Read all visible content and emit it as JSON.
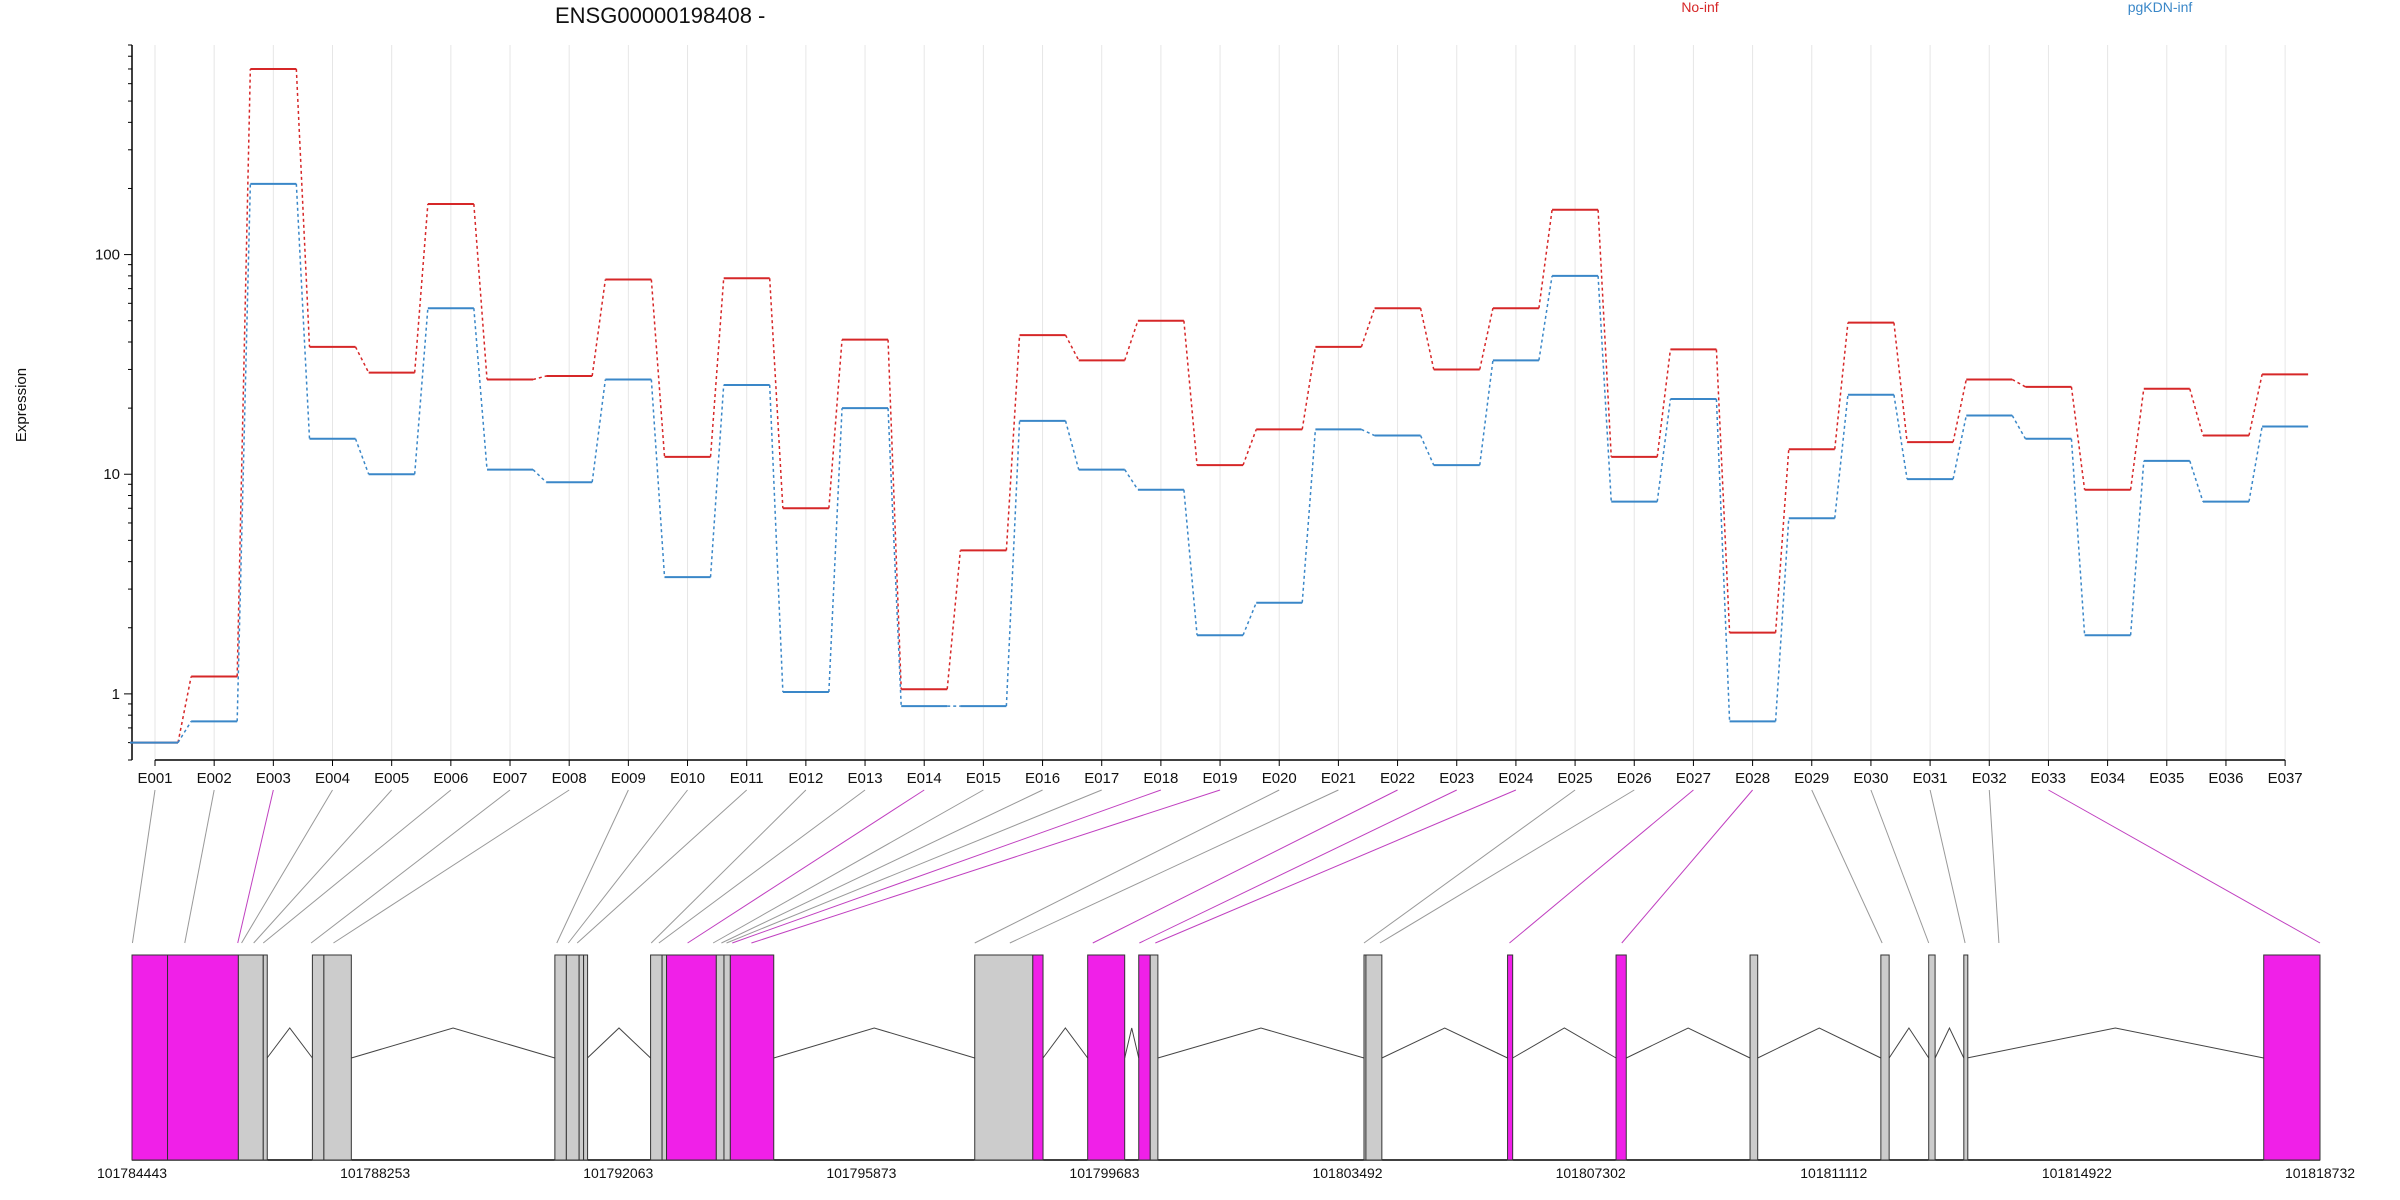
{
  "chart_data": {
    "type": "line",
    "title": "ENSG00000198408 -",
    "xlabel": "",
    "ylabel": "Expression",
    "y_scale": "log",
    "ylim": [
      0.5,
      900
    ],
    "y_ticks": [
      1,
      10,
      100
    ],
    "y_tick_labels": [
      "1",
      "10",
      "100"
    ],
    "grid": "vertical",
    "legend_placement": "top-right",
    "categories": [
      "E001",
      "E002",
      "E003",
      "E004",
      "E005",
      "E006",
      "E007",
      "E008",
      "E009",
      "E010",
      "E011",
      "E012",
      "E013",
      "E014",
      "E015",
      "E016",
      "E017",
      "E018",
      "E019",
      "E020",
      "E021",
      "E022",
      "E023",
      "E024",
      "E025",
      "E026",
      "E027",
      "E028",
      "E029",
      "E030",
      "E031",
      "E032",
      "E033",
      "E034",
      "E035",
      "E036",
      "E037"
    ],
    "series": [
      {
        "name": "No-inf",
        "color": "#d62728",
        "values": [
          0.6,
          1.2,
          700,
          38,
          29,
          170,
          27,
          28,
          77,
          12,
          78,
          7,
          41,
          1.05,
          4.5,
          43,
          33,
          50,
          11,
          16,
          38,
          57,
          30,
          57,
          160,
          12,
          37,
          1.9,
          13,
          49,
          14,
          27,
          25,
          8.5,
          24.5,
          15,
          28.5
        ]
      },
      {
        "name": "pgKDN-inf",
        "color": "#3a87c8",
        "values": [
          0.6,
          0.75,
          210,
          14.5,
          10,
          57,
          10.5,
          9.2,
          27,
          3.4,
          25.5,
          1.02,
          20,
          0.88,
          0.88,
          17.5,
          10.5,
          8.5,
          1.85,
          2.6,
          16,
          15,
          11,
          33,
          80,
          7.5,
          22,
          0.75,
          6.3,
          23,
          9.5,
          18.5,
          14.5,
          1.85,
          11.5,
          7.5,
          16.5
        ]
      }
    ],
    "gene_model": {
      "coordinate_ticks": [
        "101784443",
        "101788253",
        "101792063",
        "101795873",
        "101799683",
        "101803492",
        "101807302",
        "101811112",
        "101814922",
        "101818732"
      ],
      "exons": [
        {
          "id": "E001",
          "start": 101784443,
          "end": 101785000,
          "highlight": true
        },
        {
          "id": "E002",
          "start": 101785000,
          "end": 101786110,
          "highlight": true
        },
        {
          "id": "E003",
          "start": 101786110,
          "end": 101786500,
          "highlight": false
        },
        {
          "id": "E004",
          "start": 101786500,
          "end": 101786560,
          "highlight": false
        },
        {
          "id": "E005",
          "start": 101787270,
          "end": 101787450,
          "highlight": false
        },
        {
          "id": "E006",
          "start": 101787450,
          "end": 101787880,
          "highlight": false
        },
        {
          "id": "E007",
          "start": 101791070,
          "end": 101791250,
          "highlight": false
        },
        {
          "id": "E008",
          "start": 101791250,
          "end": 101791450,
          "highlight": false
        },
        {
          "id": "E009",
          "start": 101791450,
          "end": 101791520,
          "highlight": false
        },
        {
          "id": "E010",
          "start": 101791520,
          "end": 101791580,
          "highlight": false
        },
        {
          "id": "E011",
          "start": 101792570,
          "end": 101792750,
          "highlight": false
        },
        {
          "id": "E012",
          "start": 101792750,
          "end": 101792820,
          "highlight": false
        },
        {
          "id": "E013",
          "start": 101792820,
          "end": 101793600,
          "highlight": true
        },
        {
          "id": "E014",
          "start": 101793600,
          "end": 101793720,
          "highlight": false
        },
        {
          "id": "E015",
          "start": 101793720,
          "end": 101793820,
          "highlight": false
        },
        {
          "id": "E016",
          "start": 101793820,
          "end": 101794500,
          "highlight": true
        },
        {
          "id": "E017",
          "start": 101797650,
          "end": 101798560,
          "highlight": false
        },
        {
          "id": "E018",
          "start": 101798560,
          "end": 101798720,
          "highlight": true
        },
        {
          "id": "E019",
          "start": 101799420,
          "end": 101800000,
          "highlight": true
        },
        {
          "id": "E020",
          "start": 101800220,
          "end": 101800400,
          "highlight": true
        },
        {
          "id": "E021",
          "start": 101800400,
          "end": 101800520,
          "highlight": false
        },
        {
          "id": "E022",
          "start": 101803750,
          "end": 101803780,
          "highlight": false
        },
        {
          "id": "E023",
          "start": 101803780,
          "end": 101804030,
          "highlight": false
        },
        {
          "id": "E024",
          "start": 101806000,
          "end": 101806080,
          "highlight": true
        },
        {
          "id": "E025",
          "start": 101807700,
          "end": 101807860,
          "highlight": true
        },
        {
          "id": "E026",
          "start": 101809800,
          "end": 101809920,
          "highlight": false
        },
        {
          "id": "E027",
          "start": 101811850,
          "end": 101811980,
          "highlight": false
        },
        {
          "id": "E028",
          "start": 101812600,
          "end": 101812700,
          "highlight": false
        },
        {
          "id": "E029",
          "start": 101813150,
          "end": 101813200,
          "highlight": false
        },
        {
          "id": "E030",
          "start": 101817850,
          "end": 101818732,
          "highlight": true
        }
      ],
      "connectors": [
        {
          "label": "E001",
          "gene_pos": 101784450,
          "highlight": false
        },
        {
          "label": "E002",
          "gene_pos": 101785270,
          "highlight": false
        },
        {
          "label": "E003",
          "gene_pos": 101786100,
          "highlight": true
        },
        {
          "label": "E004",
          "gene_pos": 101786160,
          "highlight": false
        },
        {
          "label": "E005",
          "gene_pos": 101786350,
          "highlight": false
        },
        {
          "label": "E006",
          "gene_pos": 101786500,
          "highlight": false
        },
        {
          "label": "E007",
          "gene_pos": 101787250,
          "highlight": false
        },
        {
          "label": "E008",
          "gene_pos": 101787600,
          "highlight": false
        },
        {
          "label": "E009",
          "gene_pos": 101791100,
          "highlight": false
        },
        {
          "label": "E010",
          "gene_pos": 101791280,
          "highlight": false
        },
        {
          "label": "E011",
          "gene_pos": 101791420,
          "highlight": false
        },
        {
          "label": "E012",
          "gene_pos": 101792580,
          "highlight": false
        },
        {
          "label": "E013",
          "gene_pos": 101792700,
          "highlight": false
        },
        {
          "label": "E014",
          "gene_pos": 101793150,
          "highlight": true
        },
        {
          "label": "E015",
          "gene_pos": 101793550,
          "highlight": false
        },
        {
          "label": "E016",
          "gene_pos": 101793680,
          "highlight": false
        },
        {
          "label": "E017",
          "gene_pos": 101793760,
          "highlight": false
        },
        {
          "label": "E018",
          "gene_pos": 101793850,
          "highlight": true
        },
        {
          "label": "E019",
          "gene_pos": 101794150,
          "highlight": true
        },
        {
          "label": "E020",
          "gene_pos": 101797650,
          "highlight": false
        },
        {
          "label": "E021",
          "gene_pos": 101798200,
          "highlight": false
        },
        {
          "label": "E022",
          "gene_pos": 101799500,
          "highlight": true
        },
        {
          "label": "E023",
          "gene_pos": 101800230,
          "highlight": true
        },
        {
          "label": "E024",
          "gene_pos": 101800480,
          "highlight": true
        },
        {
          "label": "E025",
          "gene_pos": 101803750,
          "highlight": false
        },
        {
          "label": "E026",
          "gene_pos": 101804000,
          "highlight": false
        },
        {
          "label": "E027",
          "gene_pos": 101806030,
          "highlight": true
        },
        {
          "label": "E028",
          "gene_pos": 101807790,
          "highlight": true
        },
        {
          "label": "E029",
          "gene_pos": 101811870,
          "highlight": false
        },
        {
          "label": "E030",
          "gene_pos": 101812600,
          "highlight": false
        },
        {
          "label": "E031",
          "gene_pos": 101813170,
          "highlight": false
        },
        {
          "label": "E032",
          "gene_pos": 101813700,
          "highlight": false
        },
        {
          "label": "E033",
          "gene_pos": 101818732,
          "highlight": true
        }
      ]
    }
  },
  "colors": {
    "exon_highlight": "#f020e8",
    "exon_normal": "#cccccc",
    "connector_normal": "#999999",
    "connector_highlight": "#c040c0",
    "grid": "#e6e6e6",
    "axis": "#000000"
  }
}
